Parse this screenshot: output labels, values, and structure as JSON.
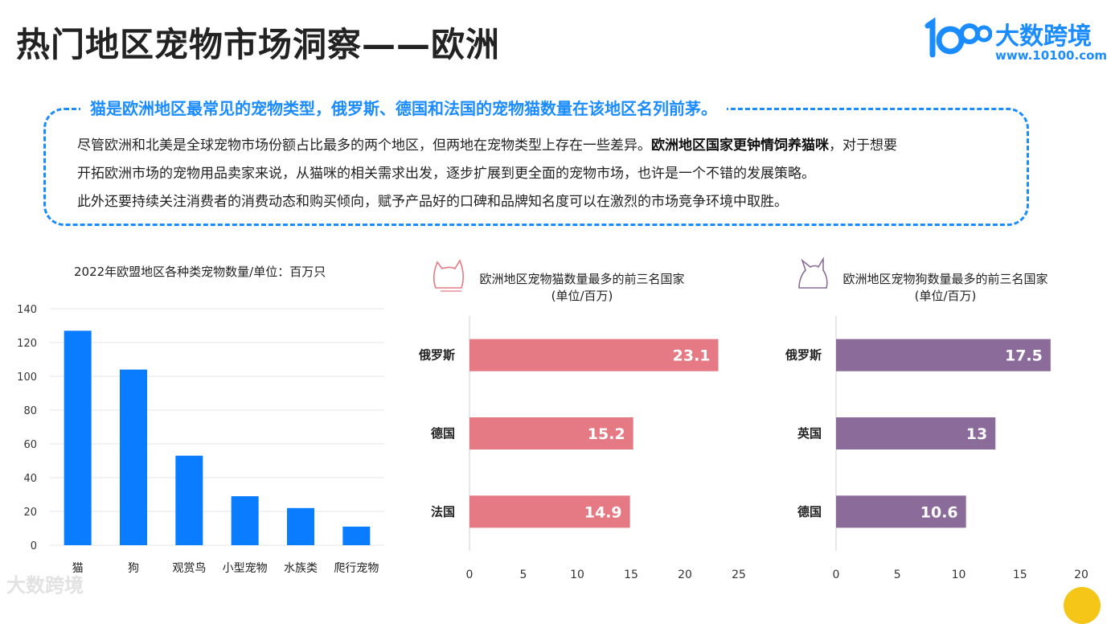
{
  "header": {
    "title": "热门地区宠物市场洞察——欧洲",
    "logo_cn": "大数跨境",
    "logo_url": "www.10100.com",
    "logo_mark": "1OO"
  },
  "insight": {
    "headline": "猫是欧洲地区最常见的宠物类型，俄罗斯、德国和法国的宠物猫数量在该地区名列前茅。",
    "line1_pre": "尽管欧洲和北美是全球宠物市场份额占比最多的两个地区，但两地在宠物类型上存在一些差异。",
    "line1_bold": "欧洲地区国家更钟情饲养猫咪",
    "line1_post": "，对于想要",
    "line2": "开拓欧洲市场的宠物用品卖家来说，从猫咪的相关需求出发，逐步扩展到更全面的宠物市场，也许是一个不错的发展策略。",
    "line3": "此外还要持续关注消费者的消费动态和购买倾向，赋予产品好的口碑和品牌知名度可以在激烈的市场竞争环境中取胜。"
  },
  "watermark": "大数跨境",
  "chart_data": [
    {
      "type": "bar",
      "title": "2022年欧盟地区各种类宠物数量/单位：百万只",
      "categories": [
        "猫",
        "狗",
        "观赏鸟",
        "小型宠物",
        "水族类",
        "爬行宠物"
      ],
      "values": [
        127,
        104,
        53,
        29,
        22,
        11
      ],
      "ylim": [
        0,
        140
      ],
      "yticks": [
        0,
        20,
        40,
        60,
        80,
        100,
        120,
        140
      ],
      "grid": true,
      "color": "#0a7cff"
    },
    {
      "type": "bar",
      "orientation": "horizontal",
      "title": "欧洲地区宠物猫数量最多的前三名国家",
      "subtitle": "(单位/百万)",
      "categories": [
        "俄罗斯",
        "德国",
        "法国"
      ],
      "values": [
        23.1,
        15.2,
        14.9
      ],
      "xlim": [
        0,
        25
      ],
      "xticks": [
        0,
        5,
        10,
        15,
        20,
        25
      ],
      "color": "#e57a84",
      "icon": "cat-head-icon"
    },
    {
      "type": "bar",
      "orientation": "horizontal",
      "title": "欧洲地区宠物狗数量最多的前三名国家",
      "subtitle": "(单位/百万)",
      "categories": [
        "俄罗斯",
        "英国",
        "德国"
      ],
      "values": [
        17.5,
        13,
        10.6
      ],
      "xlim": [
        0,
        20
      ],
      "xticks": [
        0,
        5,
        10,
        15,
        20
      ],
      "color": "#8a6b9a",
      "icon": "dog-head-icon"
    }
  ]
}
